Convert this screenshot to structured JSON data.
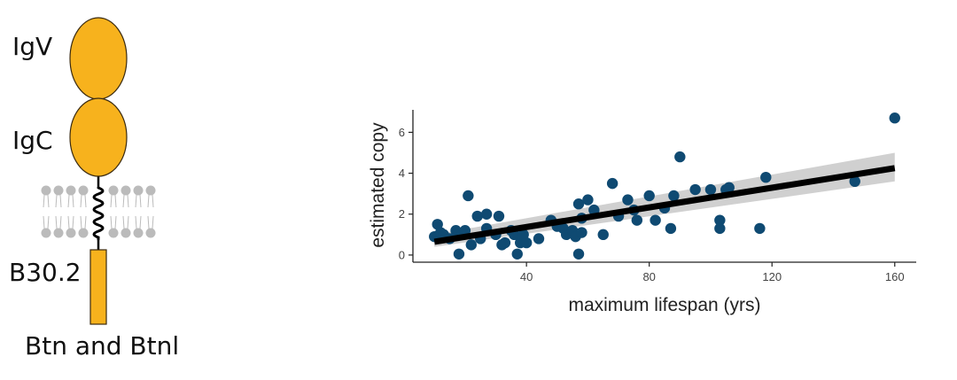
{
  "protein_diagram": {
    "domain_labels": [
      "IgV",
      "IgC",
      "B30.2"
    ],
    "caption": "Btn and Btnl",
    "colors": {
      "domain_fill": "#f7b21d",
      "domain_stroke": "#3a2a10",
      "membrane": "#bbbbbb"
    }
  },
  "chart_data": {
    "type": "scatter",
    "title": "",
    "xlabel": "maximum lifespan (yrs)",
    "ylabel": "estimated copy",
    "xlim": [
      3,
      167
    ],
    "ylim": [
      -0.35,
      7.1
    ],
    "xticks": [
      40,
      80,
      120,
      160
    ],
    "yticks": [
      0,
      2,
      4,
      6
    ],
    "x": [
      10,
      11,
      12,
      13,
      15,
      17,
      18,
      19,
      20,
      21,
      22,
      24,
      25,
      27,
      27,
      30,
      31,
      32,
      33,
      35,
      36,
      37,
      38,
      39,
      40,
      44,
      48,
      50,
      52,
      53,
      55,
      56,
      57,
      57,
      58,
      58,
      60,
      62,
      65,
      68,
      70,
      73,
      75,
      76,
      80,
      82,
      85,
      87,
      88,
      90,
      95,
      100,
      103,
      103,
      105,
      106,
      116,
      118,
      147,
      160
    ],
    "y": [
      0.9,
      1.5,
      1.1,
      1.0,
      0.8,
      1.2,
      0.05,
      1.0,
      1.2,
      2.9,
      0.5,
      1.9,
      0.8,
      2.0,
      1.3,
      1.0,
      1.9,
      0.5,
      0.6,
      1.2,
      1.0,
      0.05,
      0.6,
      1.0,
      0.6,
      0.8,
      1.7,
      1.4,
      1.3,
      1.0,
      1.2,
      0.9,
      0.05,
      2.5,
      1.1,
      1.8,
      2.7,
      2.2,
      1.0,
      3.5,
      1.9,
      2.7,
      2.2,
      1.7,
      2.9,
      1.7,
      2.3,
      1.3,
      2.9,
      4.8,
      3.2,
      3.2,
      1.7,
      1.3,
      3.2,
      3.3,
      1.3,
      3.8,
      3.6,
      6.7
    ],
    "point_color": "#0f4a72",
    "fit_line": {
      "x": [
        10,
        160
      ],
      "y": [
        0.65,
        4.25
      ],
      "color": "#000000"
    },
    "confidence_band": {
      "x": [
        10,
        160
      ],
      "lower": [
        0.4,
        3.6
      ],
      "upper": [
        1.0,
        5.0
      ],
      "color": "#c8c8c8"
    }
  }
}
